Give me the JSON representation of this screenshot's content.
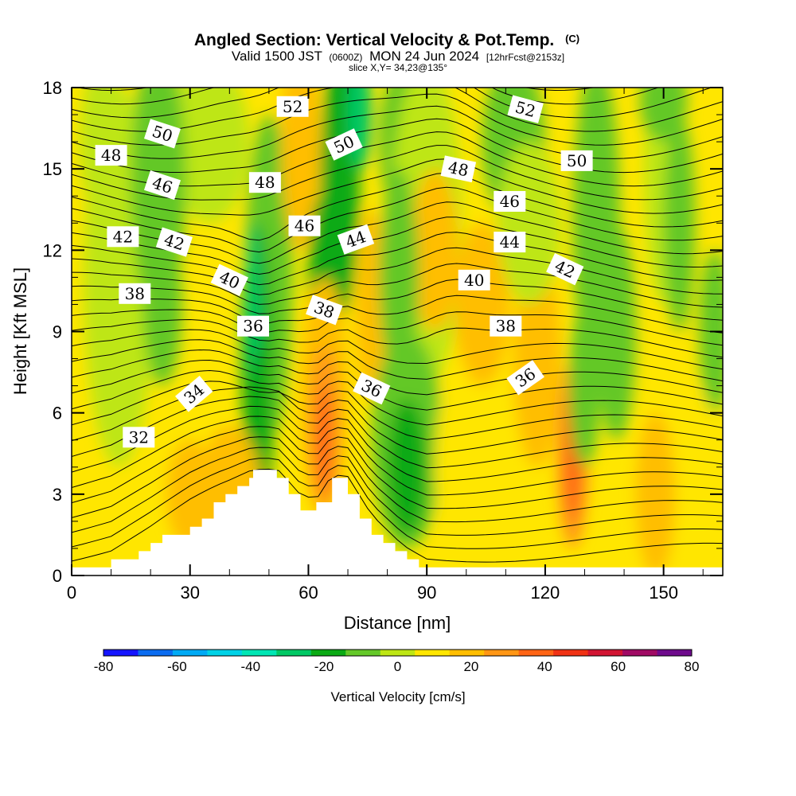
{
  "chart_data": {
    "type": "heatmap",
    "title": "Angled Section: Vertical Velocity & Pot.Temp.",
    "title_mark": "(C)",
    "subtitle_parts": [
      "Valid 1500 JST",
      "(0600Z)",
      "MON 24 Jun 2024",
      "[12hrFcst@2153z]"
    ],
    "subtitle2": "slice X,Y= 34,23@135°",
    "xlabel": "Distance [nm]",
    "ylabel": "Height [Kft MSL]",
    "xlim": [
      0,
      165
    ],
    "ylim": [
      0,
      18
    ],
    "x_ticks": [
      0,
      30,
      60,
      90,
      120,
      150
    ],
    "y_ticks": [
      0,
      3,
      6,
      9,
      12,
      15,
      18
    ],
    "colorbar": {
      "label": "Vertical Velocity [cm/s]",
      "ticks": [
        -80,
        -60,
        -40,
        -20,
        0,
        20,
        40,
        60,
        80
      ],
      "bins": [
        -80,
        -70,
        -60,
        -50,
        -40,
        -30,
        -20,
        -10,
        0,
        10,
        20,
        30,
        40,
        50,
        60,
        70,
        80
      ],
      "colors": [
        "#1414ff",
        "#0a6cf0",
        "#00aaf5",
        "#00d2e6",
        "#00e6b4",
        "#00c864",
        "#0aaa14",
        "#64c828",
        "#bee614",
        "#ffe600",
        "#ffbe00",
        "#ff9614",
        "#ff6414",
        "#f03214",
        "#d21432",
        "#a00a64",
        "#6e0a8c"
      ]
    },
    "isentrope_labels": [
      {
        "text": "52",
        "x": 56,
        "y": 17.3,
        "angle": 0
      },
      {
        "text": "52",
        "x": 115,
        "y": 17.2,
        "angle": 15
      },
      {
        "text": "50",
        "x": 23,
        "y": 16.3,
        "angle": 18
      },
      {
        "text": "50",
        "x": 69,
        "y": 15.9,
        "angle": -25
      },
      {
        "text": "50",
        "x": 128,
        "y": 15.3,
        "angle": 0
      },
      {
        "text": "48",
        "x": 10,
        "y": 15.5,
        "angle": 0
      },
      {
        "text": "48",
        "x": 49,
        "y": 14.5,
        "angle": 0
      },
      {
        "text": "48",
        "x": 98,
        "y": 15.0,
        "angle": 12
      },
      {
        "text": "46",
        "x": 23,
        "y": 14.4,
        "angle": 18
      },
      {
        "text": "46",
        "x": 59,
        "y": 12.9,
        "angle": 0
      },
      {
        "text": "46",
        "x": 111,
        "y": 13.8,
        "angle": 0
      },
      {
        "text": "44",
        "x": 72,
        "y": 12.4,
        "angle": -20
      },
      {
        "text": "44",
        "x": 111,
        "y": 12.3,
        "angle": 0
      },
      {
        "text": "42",
        "x": 13,
        "y": 12.5,
        "angle": 0
      },
      {
        "text": "42",
        "x": 26,
        "y": 12.3,
        "angle": 18
      },
      {
        "text": "42",
        "x": 125,
        "y": 11.3,
        "angle": 25
      },
      {
        "text": "40",
        "x": 40,
        "y": 10.9,
        "angle": 25
      },
      {
        "text": "40",
        "x": 102,
        "y": 10.9,
        "angle": 0
      },
      {
        "text": "38",
        "x": 16,
        "y": 10.4,
        "angle": 0
      },
      {
        "text": "38",
        "x": 64,
        "y": 9.8,
        "angle": 20
      },
      {
        "text": "38",
        "x": 110,
        "y": 9.2,
        "angle": 0
      },
      {
        "text": "36",
        "x": 46,
        "y": 9.2,
        "angle": 0
      },
      {
        "text": "36",
        "x": 76,
        "y": 6.9,
        "angle": 25
      },
      {
        "text": "36",
        "x": 115,
        "y": 7.3,
        "angle": -35
      },
      {
        "text": "34",
        "x": 31,
        "y": 6.7,
        "angle": -40
      },
      {
        "text": "32",
        "x": 17,
        "y": 5.1,
        "angle": 0
      }
    ]
  }
}
